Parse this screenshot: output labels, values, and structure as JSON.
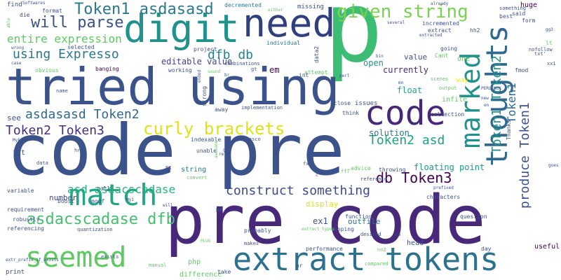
{
  "word_cloud": {
    "background": "#ffffff",
    "palette": [
      "#440154",
      "#3b528b",
      "#21918c",
      "#5ec962",
      "#fde725"
    ],
    "words": [
      {
        "text": "p",
        "size": 140,
        "color": "#3dbc74",
        "rotate": false
      },
      {
        "text": "code pre",
        "size": 100,
        "color": "#3b528b",
        "rotate": false
      },
      {
        "text": "pre code",
        "size": 95,
        "color": "#482878",
        "rotate": false
      },
      {
        "text": "tried using",
        "size": 72,
        "color": "#3b528b",
        "rotate": false
      },
      {
        "text": "need",
        "size": 55,
        "color": "#30407f",
        "rotate": false
      },
      {
        "text": "digit",
        "size": 55,
        "color": "#21918c",
        "rotate": false
      },
      {
        "text": "code",
        "size": 48,
        "color": "#482878",
        "rotate": false
      },
      {
        "text": "extract tokens",
        "size": 45,
        "color": "#2c728e",
        "rotate": false
      },
      {
        "text": "match",
        "size": 42,
        "color": "#21a585",
        "rotate": false
      },
      {
        "text": "seemed",
        "size": 40,
        "color": "#5ec962",
        "rotate": false
      },
      {
        "text": "thoughts",
        "size": 42,
        "color": "#31688e",
        "rotate": true
      },
      {
        "text": "marked",
        "size": 38,
        "color": "#21918c",
        "rotate": true
      },
      {
        "text": "given string",
        "size": 26,
        "color": "#7ad151",
        "rotate": false
      },
      {
        "text": "Token1 asdasasd",
        "size": 22,
        "color": "#2a788e",
        "rotate": false
      },
      {
        "text": "will parse",
        "size": 22,
        "color": "#3b528b",
        "rotate": false
      },
      {
        "text": "using Expresso",
        "size": 18,
        "color": "#2a788e",
        "rotate": false
      },
      {
        "text": "curly brackets",
        "size": 24,
        "color": "#dde318",
        "rotate": false
      },
      {
        "text": "asdasasd Token2",
        "size": 18,
        "color": "#31688e",
        "rotate": false
      },
      {
        "text": "Token2 Token3",
        "size": 18,
        "color": "#472d7b",
        "rotate": false
      },
      {
        "text": "asd asdacscadase",
        "size": 16,
        "color": "#2ab07f",
        "rotate": false
      },
      {
        "text": "asdacscadase dfb",
        "size": 22,
        "color": "#44bf70",
        "rotate": false
      },
      {
        "text": "construct something",
        "size": 18,
        "color": "#3e4a89",
        "rotate": false
      },
      {
        "text": "db Token3",
        "size": 20,
        "color": "#440154",
        "rotate": false
      },
      {
        "text": "Token2 asd",
        "size": 18,
        "color": "#1fa187",
        "rotate": false
      },
      {
        "text": "dfb db",
        "size": 18,
        "color": "#26828e",
        "rotate": false
      },
      {
        "text": "entire expression",
        "size": 16,
        "color": "#5ec962",
        "rotate": false
      },
      {
        "text": "produce Token1",
        "size": 18,
        "color": "#3b528b",
        "rotate": true
      },
      {
        "text": "Token1 Token2",
        "size": 18,
        "color": "#21918c",
        "rotate": true
      },
      {
        "text": "Token1",
        "size": 16,
        "color": "#31688e",
        "rotate": true
      },
      {
        "text": "floating point",
        "size": 12,
        "color": "#1f988b",
        "rotate": false
      },
      {
        "text": "editable value",
        "size": 12,
        "color": "#414487",
        "rotate": false
      },
      {
        "text": "currently",
        "size": 12,
        "color": "#472d7b",
        "rotate": false
      },
      {
        "text": "em",
        "size": 12,
        "color": "#440154",
        "rotate": false
      },
      {
        "text": "open",
        "size": 12,
        "color": "#21918c",
        "rotate": false
      },
      {
        "text": "solution",
        "size": 12,
        "color": "#2a788e",
        "rotate": false
      },
      {
        "text": "value",
        "size": 11,
        "color": "#3b528b",
        "rotate": false
      },
      {
        "text": "float",
        "size": 12,
        "color": "#22a884",
        "rotate": false
      },
      {
        "text": "ex1",
        "size": 12,
        "color": "#3b528b",
        "rotate": false
      },
      {
        "text": "display",
        "size": 11,
        "color": "#dde318",
        "rotate": false
      },
      {
        "text": "outfile",
        "size": 11,
        "color": "#2a788e",
        "rotate": false
      },
      {
        "text": "infile",
        "size": 10,
        "color": "#5ec962",
        "rotate": false
      },
      {
        "text": "see",
        "size": 11,
        "color": "#3b528b",
        "rotate": false
      },
      {
        "text": "number",
        "size": 11,
        "color": "#3e4a89",
        "rotate": false
      },
      {
        "text": "string",
        "size": 10,
        "color": "#2a788e",
        "rotate": false
      },
      {
        "text": "txt",
        "size": 10,
        "color": "#3b528b",
        "rotate": false
      },
      {
        "text": "php",
        "size": 10,
        "color": "#5ec962",
        "rotate": false
      },
      {
        "text": "print",
        "size": 9,
        "color": "#3b528b",
        "rotate": false
      },
      {
        "text": "difference",
        "size": 10,
        "color": "#5ec962",
        "rotate": false
      },
      {
        "text": "head",
        "size": 10,
        "color": "#3b528b",
        "rotate": false
      },
      {
        "text": "useful",
        "size": 10,
        "color": "#440154",
        "rotate": false
      },
      {
        "text": "huge",
        "size": 10,
        "color": "#440154",
        "rotate": false
      },
      {
        "text": "one",
        "size": 10,
        "color": "#5ec962",
        "rotate": false
      },
      {
        "text": "way",
        "size": 10,
        "color": "#fde725",
        "rotate": false
      },
      {
        "text": "issues",
        "size": 9,
        "color": "#3b528b",
        "rotate": false
      },
      {
        "text": "find",
        "size": 9,
        "color": "#3b528b",
        "rotate": false
      },
      {
        "text": "die",
        "size": 8,
        "color": "#414487",
        "rotate": false
      },
      {
        "text": "format",
        "size": 8,
        "color": "#3b528b",
        "rotate": false
      },
      {
        "text": "decremented",
        "size": 8,
        "color": "#2a788e",
        "rotate": false
      },
      {
        "text": "missing",
        "size": 9,
        "color": "#3b528b",
        "rotate": false
      },
      {
        "text": "extract",
        "size": 8,
        "color": "#3b528b",
        "rotate": false
      },
      {
        "text": "incremented",
        "size": 8,
        "color": "#3b528b",
        "rotate": false
      },
      {
        "text": "selected",
        "size": 8,
        "color": "#3b528b",
        "rotate": false
      },
      {
        "text": "individual",
        "size": 8,
        "color": "#2a788e",
        "rotate": false
      },
      {
        "text": "data2",
        "size": 8,
        "color": "#3b528b",
        "rotate": true
      },
      {
        "text": "hh2",
        "size": 8,
        "color": "#3b528b",
        "rotate": false
      },
      {
        "text": "going",
        "size": 8,
        "color": "#3b528b",
        "rotate": false
      },
      {
        "text": "Cant",
        "size": 8,
        "color": "#5ec962",
        "rotate": false
      },
      {
        "text": "best",
        "size": 8,
        "color": "#3b528b",
        "rotate": false
      },
      {
        "text": "said",
        "size": 8,
        "color": "#3b528b",
        "rotate": false
      },
      {
        "text": "form",
        "size": 8,
        "color": "#3b528b",
        "rotate": false
      },
      {
        "text": "something",
        "size": 7,
        "color": "#3b528b",
        "rotate": false
      },
      {
        "text": "project",
        "size": 8,
        "color": "#3b528b",
        "rotate": false
      },
      {
        "text": "working",
        "size": 8,
        "color": "#3b528b",
        "rotate": false
      },
      {
        "text": "banging",
        "size": 8,
        "color": "#440154",
        "rotate": false
      },
      {
        "text": "obvious",
        "size": 8,
        "color": "#5ec962",
        "rotate": false
      },
      {
        "text": "attempt",
        "size": 8,
        "color": "#5ec962",
        "rotate": false
      },
      {
        "text": "scenes",
        "size": 7,
        "color": "#5ec962",
        "rotate": false
      },
      {
        "text": "output",
        "size": 7,
        "color": "#5ec962",
        "rotate": false
      },
      {
        "text": "fmod",
        "size": 8,
        "color": "#3b528b",
        "rotate": false
      },
      {
        "text": "strong",
        "size": 8,
        "color": "#3b528b",
        "rotate": true
      },
      {
        "text": "away",
        "size": 8,
        "color": "#3b528b",
        "rotate": false
      },
      {
        "text": "implementation",
        "size": 7,
        "color": "#3b528b",
        "rotate": false
      },
      {
        "text": "close",
        "size": 8,
        "color": "#3b528b",
        "rotate": false
      },
      {
        "text": "think",
        "size": 8,
        "color": "#3b528b",
        "rotate": false
      },
      {
        "text": "collection",
        "size": 8,
        "color": "#3b528b",
        "rotate": false
      },
      {
        "text": "indexable",
        "size": 8,
        "color": "#3b528b",
        "rotate": false
      },
      {
        "text": "unable",
        "size": 8,
        "color": "#3b528b",
        "rotate": false
      },
      {
        "text": "pvelasco",
        "size": 7,
        "color": "#3b528b",
        "rotate": false
      },
      {
        "text": "advice",
        "size": 8,
        "color": "#5ec962",
        "rotate": false
      },
      {
        "text": "throwing",
        "size": 8,
        "color": "#3b528b",
        "rotate": false
      },
      {
        "text": "reference",
        "size": 7,
        "color": "#3b528b",
        "rotate": false
      },
      {
        "text": "characters",
        "size": 8,
        "color": "#3b528b",
        "rotate": false
      },
      {
        "text": "convert",
        "size": 7,
        "color": "#5ec962",
        "rotate": false
      },
      {
        "text": "roll",
        "size": 8,
        "color": "#3b528b",
        "rotate": false
      },
      {
        "text": "boost",
        "size": 8,
        "color": "#3b528b",
        "rotate": false
      },
      {
        "text": "modf",
        "size": 8,
        "color": "#3b528b",
        "rotate": false
      },
      {
        "text": "variable",
        "size": 8,
        "color": "#3b528b",
        "rotate": false
      },
      {
        "text": "requirement",
        "size": 8,
        "color": "#3b528b",
        "rotate": false
      },
      {
        "text": "robustly",
        "size": 8,
        "color": "#3b528b",
        "rotate": false
      },
      {
        "text": "referencing",
        "size": 8,
        "color": "#3b528b",
        "rotate": false
      },
      {
        "text": "quantization",
        "size": 7,
        "color": "#3b528b",
        "rotate": false
      },
      {
        "text": "function",
        "size": 8,
        "color": "#3b528b",
        "rotate": false
      },
      {
        "text": "hoping",
        "size": 8,
        "color": "#3b528b",
        "rotate": false
      },
      {
        "text": "desired",
        "size": 7,
        "color": "#3b528b",
        "rotate": false
      },
      {
        "text": "question",
        "size": 8,
        "color": "#3b528b",
        "rotate": false
      },
      {
        "text": "performance",
        "size": 8,
        "color": "#3b528b",
        "rotate": false
      },
      {
        "text": "compared",
        "size": 7,
        "color": "#5ec962",
        "rotate": false
      },
      {
        "text": "day",
        "size": 8,
        "color": "#3b528b",
        "rotate": false
      },
      {
        "text": "take",
        "size": 8,
        "color": "#3b528b",
        "rotate": false
      },
      {
        "text": "probably",
        "size": 8,
        "color": "#3b528b",
        "rotate": false
      },
      {
        "text": "makes",
        "size": 7,
        "color": "#3b528b",
        "rotate": false
      },
      {
        "text": "exists",
        "size": 7,
        "color": "#3b528b",
        "rotate": false
      },
      {
        "text": "manual",
        "size": 7,
        "color": "#5ec962",
        "rotate": false
      },
      {
        "text": "data",
        "size": 7,
        "color": "#3b528b",
        "rotate": false
      },
      {
        "text": "name",
        "size": 7,
        "color": "#3b528b",
        "rotate": false
      },
      {
        "text": "href",
        "size": 7,
        "color": "#3b528b",
        "rotate": false
      },
      {
        "text": "Thanks",
        "size": 8,
        "color": "#3b528b",
        "rotate": true
      },
      {
        "text": "nofollow",
        "size": 7,
        "color": "#3b528b",
        "rotate": false
      },
      {
        "text": "combinations",
        "size": 7,
        "color": "#3b528b",
        "rotate": false
      },
      {
        "text": "extr_prefix_if_exists",
        "size": 6,
        "color": "#3b528b",
        "rotate": false
      },
      {
        "text": "extract_types",
        "size": 6,
        "color": "#5ec962",
        "rotate": false
      },
      {
        "text": "PERLINUX",
        "size": 6,
        "color": "#3b528b",
        "rotate": false
      },
      {
        "text": "Softwares",
        "size": 6,
        "color": "#3b528b",
        "rotate": false
      },
      {
        "text": "prefixed",
        "size": 6,
        "color": "#3b528b",
        "rotate": false
      },
      {
        "text": "already",
        "size": 6,
        "color": "#3b528b",
        "rotate": false
      },
      {
        "text": "several",
        "size": 6,
        "color": "#3b528b",
        "rotate": false
      },
      {
        "text": "either",
        "size": 6,
        "color": "#5ec962",
        "rotate": false
      },
      {
        "text": "sound",
        "size": 6,
        "color": "#5ec962",
        "rotate": false
      },
      {
        "text": "ended",
        "size": 6,
        "color": "#3b528b",
        "rotate": true
      },
      {
        "text": "extracted",
        "size": 6,
        "color": "#3b528b",
        "rotate": false
      },
      {
        "text": "wrong",
        "size": 6,
        "color": "#3b528b",
        "rotate": false
      },
      {
        "text": "case",
        "size": 6,
        "color": "#3b528b",
        "rotate": false
      },
      {
        "text": "MyFile",
        "size": 6,
        "color": "#3b528b",
        "rotate": false
      },
      {
        "text": "awesome",
        "size": 6,
        "color": "#5ec962",
        "rotate": true
      },
      {
        "text": "goes",
        "size": 6,
        "color": "#3b528b",
        "rotate": false
      },
      {
        "text": "PLUG",
        "size": 6,
        "color": "#5ec962",
        "rotate": false
      },
      {
        "text": "perl",
        "size": 6,
        "color": "#3b528b",
        "rotate": false
      },
      {
        "text": "bin",
        "size": 6,
        "color": "#3b528b",
        "rotate": false
      },
      {
        "text": "able",
        "size": 6,
        "color": "#5ec962",
        "rotate": true
      },
      {
        "text": "txt'",
        "size": 7,
        "color": "#3b528b",
        "rotate": false
      },
      {
        "text": "xx1",
        "size": 7,
        "color": "#3b528b",
        "rotate": false
      },
      {
        "text": "lt",
        "size": 8,
        "color": "#5ec962",
        "rotate": false
      },
      {
        "text": "gt",
        "size": 7,
        "color": "#3b528b",
        "rotate": false
      },
      {
        "text": "int",
        "size": 8,
        "color": "#3b528b",
        "rotate": false
      },
      {
        "text": "HF",
        "size": 8,
        "color": "#3b528b",
        "rotate": false
      },
      {
        "text": "hr",
        "size": 8,
        "color": "#3b528b",
        "rotate": false
      },
      {
        "text": "fx2",
        "size": 7,
        "color": "#3b528b",
        "rotate": false
      },
      {
        "text": "ff7",
        "size": 7,
        "color": "#5ec962",
        "rotate": false
      },
      {
        "text": "nn2",
        "size": 7,
        "color": "#5ec962",
        "rotate": false
      },
      {
        "text": "EX",
        "size": 7,
        "color": "#3b528b",
        "rotate": false
      },
      {
        "text": "rel",
        "size": 6,
        "color": "#3b528b",
        "rotate": false
      },
      {
        "text": "C",
        "size": 7,
        "color": "#3b528b",
        "rotate": false
      },
      {
        "text": "c",
        "size": 6,
        "color": "#3b528b",
        "rotate": false
      },
      {
        "text": "br",
        "size": 6,
        "color": "#3b528b",
        "rotate": false
      },
      {
        "text": "mn",
        "size": 6,
        "color": "#3b528b",
        "rotate": false
      },
      {
        "text": "en",
        "size": 6,
        "color": "#3b528b",
        "rotate": false
      },
      {
        "text": "ca",
        "size": 6,
        "color": "#3b528b",
        "rotate": false
      },
      {
        "text": "new",
        "size": 6,
        "color": "#3b528b",
        "rotate": false
      },
      {
        "text": "My1",
        "size": 6,
        "color": "#3b528b",
        "rotate": false
      },
      {
        "text": "gg3",
        "size": 6,
        "color": "#3b528b",
        "rotate": false
      },
      {
        "text": "will",
        "size": 6,
        "color": "#3b528b",
        "rotate": false
      }
    ]
  }
}
